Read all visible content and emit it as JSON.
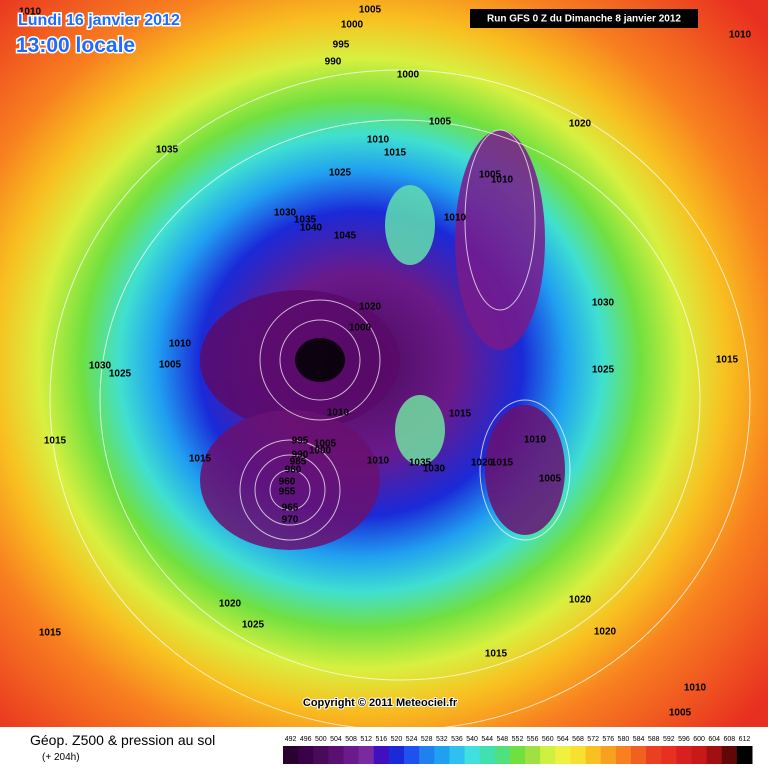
{
  "header": {
    "date": "Lundi 16 janvier 2012",
    "time": "13:00 locale",
    "run": "Run GFS 0 Z du Dimanche 8 janvier 2012"
  },
  "copyright": "Copyright © 2011 Meteociel.fr",
  "footer": {
    "title": "Géop. Z500 & pression au sol",
    "lead": "(+ 204h)"
  },
  "legend": {
    "labels": [
      "492",
      "496",
      "500",
      "504",
      "508",
      "512",
      "516",
      "520",
      "524",
      "528",
      "532",
      "536",
      "540",
      "544",
      "548",
      "552",
      "556",
      "560",
      "564",
      "568",
      "572",
      "576",
      "580",
      "584",
      "588",
      "592",
      "596",
      "600",
      "604",
      "608",
      "612"
    ]
  },
  "isobars": [
    "1010",
    "1005",
    "1000",
    "995",
    "990",
    "1000",
    "1010",
    "1005",
    "1020",
    "1035",
    "1010",
    "1015",
    "1005",
    "1010",
    "1025",
    "1030",
    "1035",
    "1040",
    "1045",
    "1010",
    "1030",
    "1020",
    "1000",
    "1010",
    "1030",
    "1025",
    "1005",
    "1015",
    "1025",
    "1010",
    "1015",
    "1015",
    "995",
    "1005",
    "1000",
    "990",
    "1015",
    "1010",
    "985",
    "980",
    "1020",
    "1035",
    "1030",
    "1015",
    "1010",
    "1005",
    "960",
    "955",
    "965",
    "970",
    "1020",
    "1020",
    "1015",
    "1025",
    "1020",
    "1015",
    "1010",
    "1005"
  ]
}
